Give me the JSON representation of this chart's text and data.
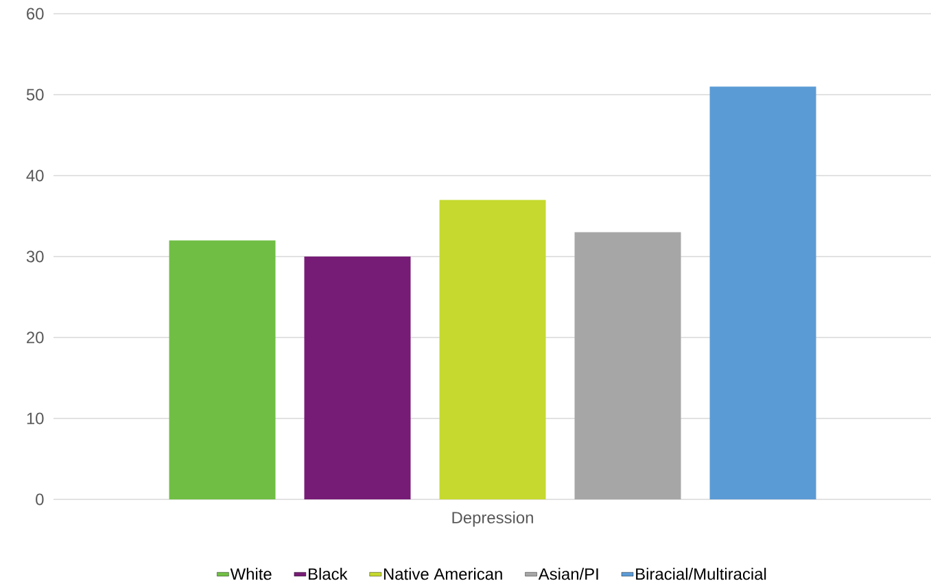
{
  "chart_data": {
    "type": "bar",
    "categories": [
      "Depression"
    ],
    "series": [
      {
        "name": "White",
        "color": "#70bf44",
        "values": [
          32
        ]
      },
      {
        "name": "Black",
        "color": "#771c76",
        "values": [
          30
        ]
      },
      {
        "name": "Native American",
        "color": "#c5d92e",
        "values": [
          37
        ]
      },
      {
        "name": "Asian/PI",
        "color": "#a6a6a6",
        "values": [
          33
        ]
      },
      {
        "name": "Biracial/Multiracial",
        "color": "#5b9bd5",
        "values": [
          51
        ]
      }
    ],
    "ylim": [
      0,
      60
    ],
    "yticks": [
      0,
      10,
      20,
      30,
      40,
      50,
      60
    ],
    "grid": "y",
    "legend": "bottom"
  }
}
